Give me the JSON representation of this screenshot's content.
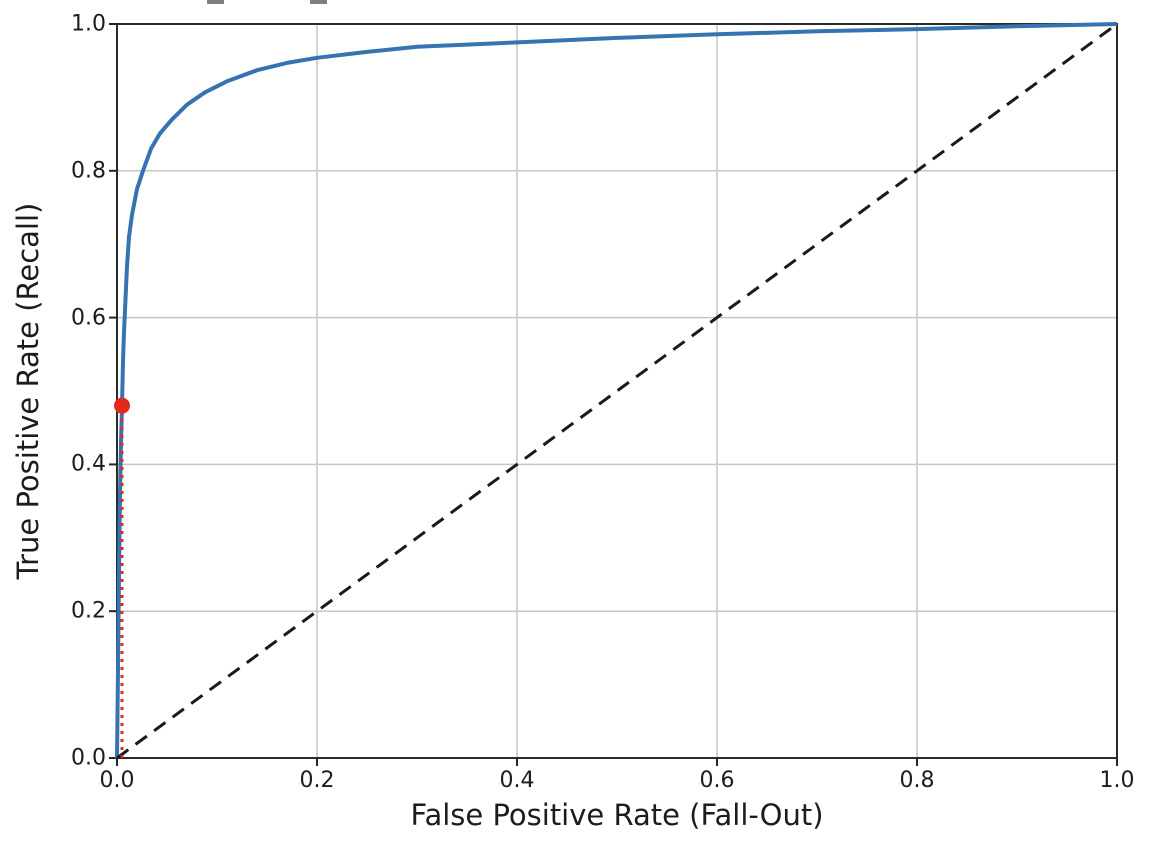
{
  "figure": {
    "background": "#ffffff",
    "note": "cropped title underscore fragments visible at top edge"
  },
  "colors": {
    "roc_curve": "#3573b1",
    "chance_diagonal": "#1a1a1a",
    "threshold_red": "#e3281c",
    "grid": "#c6c6c6",
    "spine": "#2b2b2b",
    "tick": "#262626",
    "title_fragment": "#7f7f7f"
  },
  "chart_data": {
    "type": "line",
    "title": "",
    "xlabel": "False Positive Rate (Fall-Out)",
    "ylabel": "True Positive Rate (Recall)",
    "xlim": [
      0.0,
      1.0
    ],
    "ylim": [
      0.0,
      1.0
    ],
    "grid": true,
    "legend": false,
    "x_ticks": [
      0.0,
      0.2,
      0.4,
      0.6,
      0.8,
      1.0
    ],
    "x_tick_labels": [
      "0.0",
      "0.2",
      "0.4",
      "0.6",
      "0.8",
      "1.0"
    ],
    "y_ticks": [
      0.0,
      0.2,
      0.4,
      0.6,
      0.8,
      1.0
    ],
    "y_tick_labels": [
      "0.0",
      "0.2",
      "0.4",
      "0.6",
      "0.8",
      "1.0"
    ],
    "series": [
      {
        "name": "roc-curve",
        "style": "solid",
        "color": "#3573b1",
        "width": 4,
        "points": [
          [
            0.0,
            0.0
          ],
          [
            0.001,
            0.12
          ],
          [
            0.002,
            0.25
          ],
          [
            0.003,
            0.36
          ],
          [
            0.004,
            0.43
          ],
          [
            0.005,
            0.48
          ],
          [
            0.006,
            0.54
          ],
          [
            0.007,
            0.58
          ],
          [
            0.008,
            0.61
          ],
          [
            0.01,
            0.67
          ],
          [
            0.012,
            0.71
          ],
          [
            0.015,
            0.74
          ],
          [
            0.02,
            0.775
          ],
          [
            0.026,
            0.8
          ],
          [
            0.034,
            0.83
          ],
          [
            0.043,
            0.851
          ],
          [
            0.055,
            0.87
          ],
          [
            0.07,
            0.89
          ],
          [
            0.088,
            0.907
          ],
          [
            0.11,
            0.922
          ],
          [
            0.14,
            0.937
          ],
          [
            0.17,
            0.947
          ],
          [
            0.2,
            0.954
          ],
          [
            0.25,
            0.962
          ],
          [
            0.3,
            0.969
          ],
          [
            0.35,
            0.972
          ],
          [
            0.4,
            0.975
          ],
          [
            0.5,
            0.981
          ],
          [
            0.6,
            0.986
          ],
          [
            0.7,
            0.99
          ],
          [
            0.8,
            0.993
          ],
          [
            0.9,
            0.997
          ],
          [
            1.0,
            1.0
          ]
        ]
      },
      {
        "name": "chance-diagonal",
        "style": "dashed",
        "color": "#1a1a1a",
        "width": 3,
        "points": [
          [
            0.0,
            0.0
          ],
          [
            1.0,
            1.0
          ]
        ]
      },
      {
        "name": "threshold-vertical",
        "style": "dotted",
        "color": "#e3281c",
        "width": 3,
        "points": [
          [
            0.005,
            0.0
          ],
          [
            0.005,
            0.48
          ]
        ]
      }
    ],
    "markers": [
      {
        "name": "operating-point",
        "x": 0.005,
        "y": 0.48,
        "color": "#e3281c",
        "radius": 8
      }
    ]
  }
}
